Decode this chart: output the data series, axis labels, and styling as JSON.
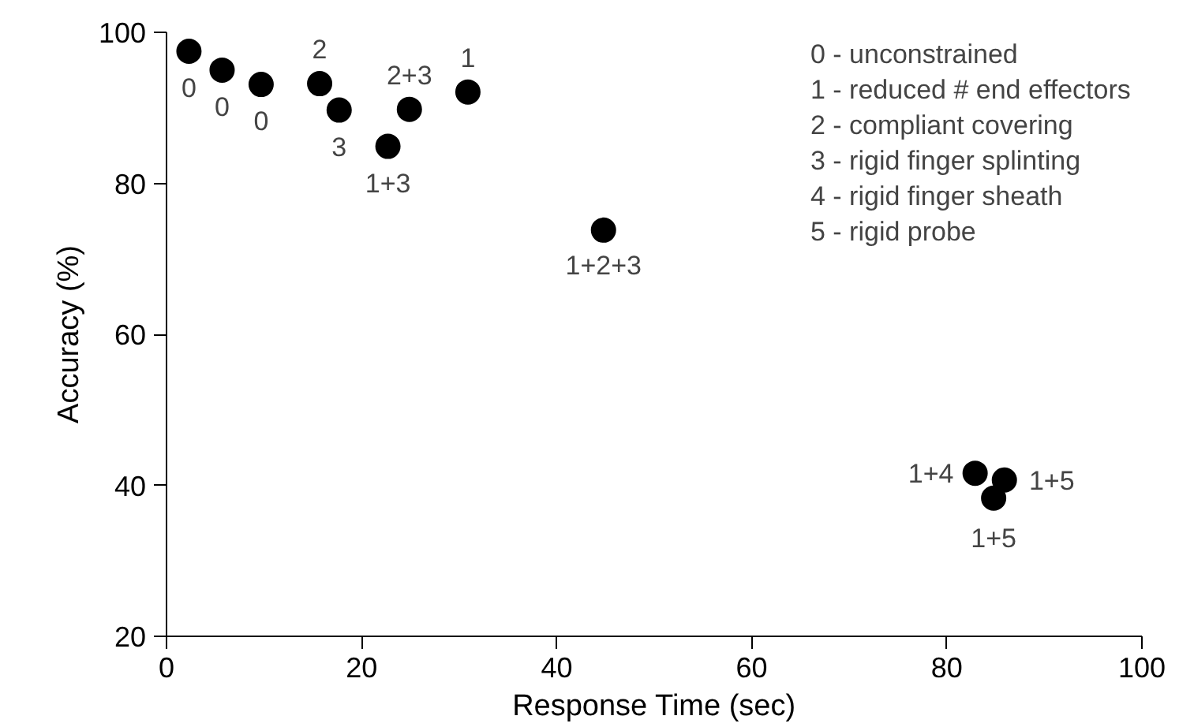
{
  "chart_data": {
    "type": "scatter",
    "xlabel": "Response Time (sec)",
    "ylabel": "Accuracy (%)",
    "x": [
      2.3,
      5.7,
      9.7,
      15.7,
      17.7,
      22.7,
      24.9,
      30.9,
      44.8,
      82.9,
      85.9,
      84.8
    ],
    "series": [
      {
        "color": "#000000",
        "values": [
          97.5,
          95.0,
          93.1,
          93.2,
          89.7,
          84.9,
          89.8,
          92.1,
          73.8,
          41.6,
          40.7,
          38.3
        ]
      }
    ],
    "marker": "circle",
    "xlim": [
      0,
      100
    ],
    "ylim": [
      20,
      100
    ],
    "xticks": [
      0,
      20,
      40,
      60,
      80,
      100
    ],
    "yticks": [
      20,
      40,
      60,
      80,
      100
    ],
    "grid": false,
    "annotations": [
      {
        "text": "0",
        "x": 2.3,
        "y": 97.5
      },
      {
        "text": "0",
        "x": 5.7,
        "y": 95.0
      },
      {
        "text": "0",
        "x": 9.7,
        "y": 93.1
      },
      {
        "text": "2",
        "x": 15.7,
        "y": 93.2
      },
      {
        "text": "3",
        "x": 17.7,
        "y": 89.7
      },
      {
        "text": "1+3",
        "x": 22.7,
        "y": 84.9
      },
      {
        "text": "2+3",
        "x": 24.9,
        "y": 89.8
      },
      {
        "text": "1",
        "x": 30.9,
        "y": 92.1
      },
      {
        "text": "1+2+3",
        "x": 44.8,
        "y": 73.8
      },
      {
        "text": "1+4",
        "x": 82.9,
        "y": 41.6
      },
      {
        "text": "1+5",
        "x": 85.9,
        "y": 40.7
      },
      {
        "text": "1+5",
        "x": 84.8,
        "y": 38.3
      },
      "0 - unconstrained",
      "1 - reduced # end effectors",
      "2 - compliant covering",
      "3 - rigid finger splinting",
      "4 - rigid finger sheath",
      "5 - rigid probe"
    ]
  }
}
